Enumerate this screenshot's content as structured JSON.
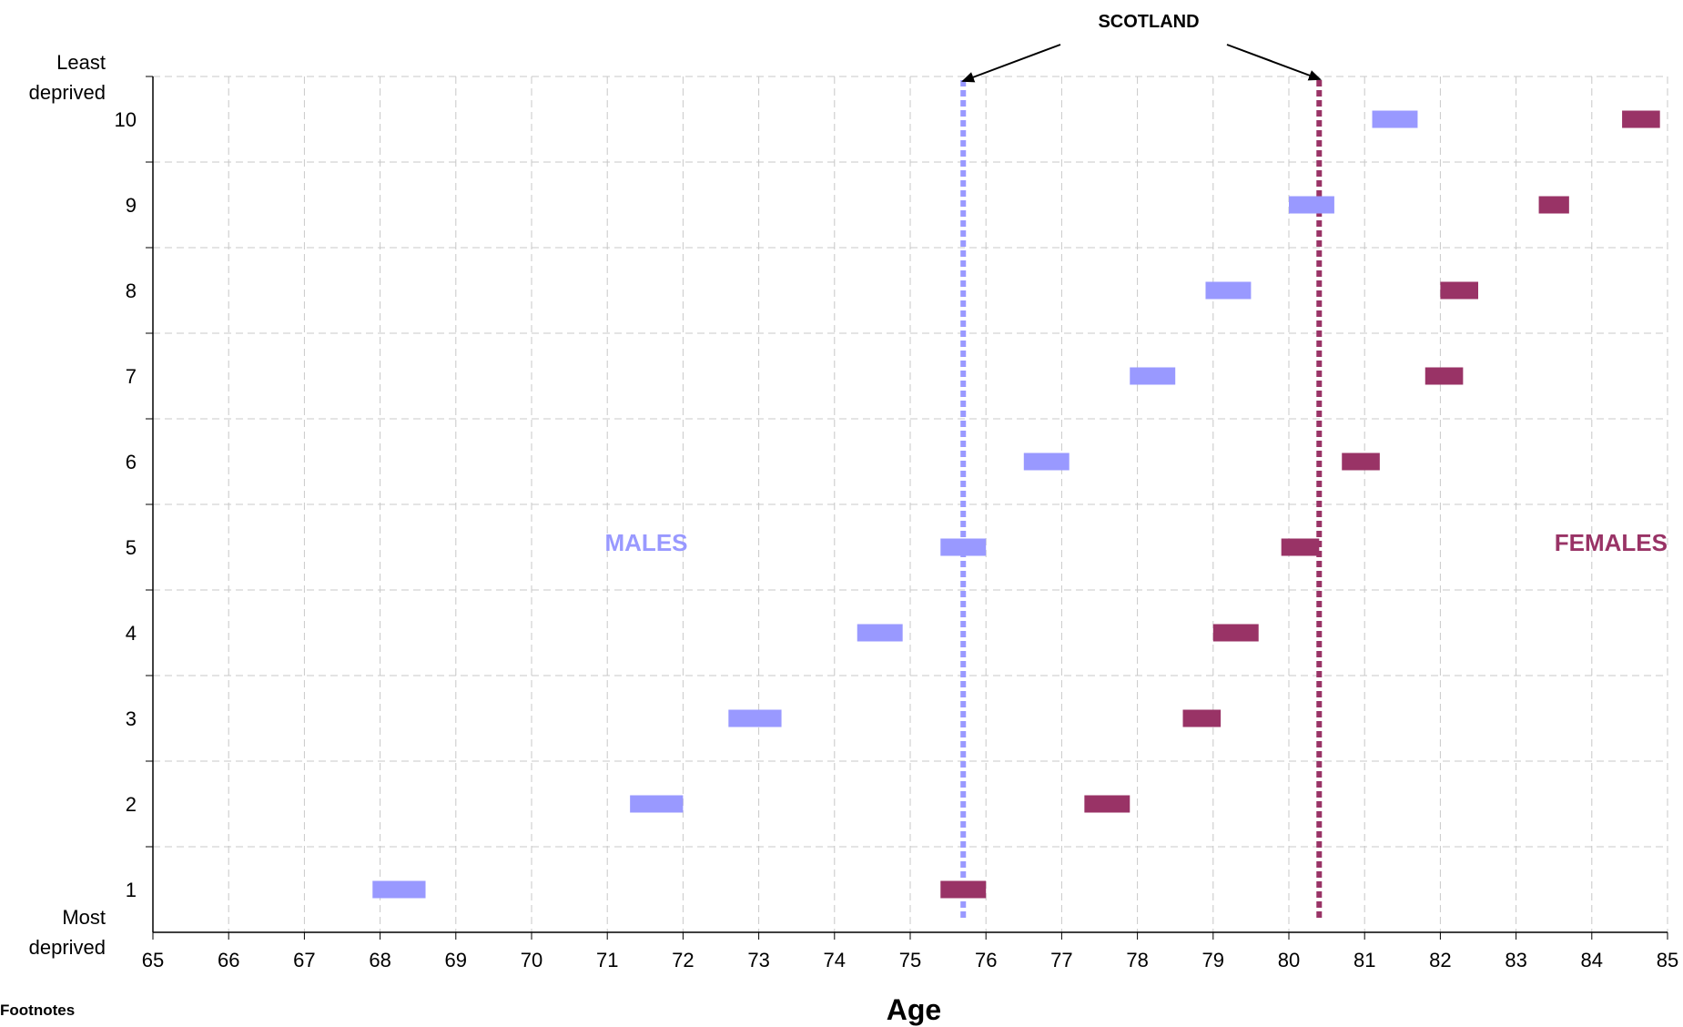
{
  "chart_data": {
    "type": "scatter",
    "title": "",
    "xlabel": "Age",
    "ylabel": "",
    "xlim": [
      65,
      85
    ],
    "ylim": [
      0.5,
      10.5
    ],
    "x_ticks": [
      "65",
      "66",
      "67",
      "68",
      "69",
      "70",
      "71",
      "72",
      "73",
      "74",
      "75",
      "76",
      "77",
      "78",
      "79",
      "80",
      "81",
      "82",
      "83",
      "84",
      "85"
    ],
    "y_ticks": [
      "1",
      "2",
      "3",
      "4",
      "5",
      "6",
      "7",
      "8",
      "9",
      "10"
    ],
    "y_top_label": [
      "Least",
      "deprived"
    ],
    "y_bottom_label": [
      "Most",
      "deprived"
    ],
    "grid": true,
    "series": [
      {
        "name": "MALES",
        "color": "#9999ff",
        "points": [
          {
            "decile": 1,
            "low": 67.9,
            "high": 68.6
          },
          {
            "decile": 2,
            "low": 71.3,
            "high": 72.0
          },
          {
            "decile": 3,
            "low": 72.6,
            "high": 73.3
          },
          {
            "decile": 4,
            "low": 74.3,
            "high": 74.9
          },
          {
            "decile": 5,
            "low": 75.4,
            "high": 76.0
          },
          {
            "decile": 6,
            "low": 76.5,
            "high": 77.1
          },
          {
            "decile": 7,
            "low": 77.9,
            "high": 78.5
          },
          {
            "decile": 8,
            "low": 78.9,
            "high": 79.5
          },
          {
            "decile": 9,
            "low": 80.0,
            "high": 80.6
          },
          {
            "decile": 10,
            "low": 81.1,
            "high": 81.7
          }
        ]
      },
      {
        "name": "FEMALES",
        "color": "#993366",
        "points": [
          {
            "decile": 1,
            "low": 75.4,
            "high": 76.0
          },
          {
            "decile": 2,
            "low": 77.3,
            "high": 77.9
          },
          {
            "decile": 3,
            "low": 78.6,
            "high": 79.1
          },
          {
            "decile": 4,
            "low": 79.0,
            "high": 79.6
          },
          {
            "decile": 5,
            "low": 79.9,
            "high": 80.4
          },
          {
            "decile": 6,
            "low": 80.7,
            "high": 81.2
          },
          {
            "decile": 7,
            "low": 81.8,
            "high": 82.3
          },
          {
            "decile": 8,
            "low": 82.0,
            "high": 82.5
          },
          {
            "decile": 9,
            "low": 83.3,
            "high": 83.7
          },
          {
            "decile": 10,
            "low": 84.4,
            "high": 84.9
          }
        ]
      }
    ],
    "reference_lines": [
      {
        "series": "MALES",
        "x": 75.7,
        "color": "#9999ff"
      },
      {
        "series": "FEMALES",
        "x": 80.4,
        "color": "#993366"
      }
    ],
    "annotations": {
      "scotland": "SCOTLAND",
      "males": "MALES",
      "females": "FEMALES"
    }
  },
  "footer": {
    "footnotes_label": "Footnotes"
  }
}
